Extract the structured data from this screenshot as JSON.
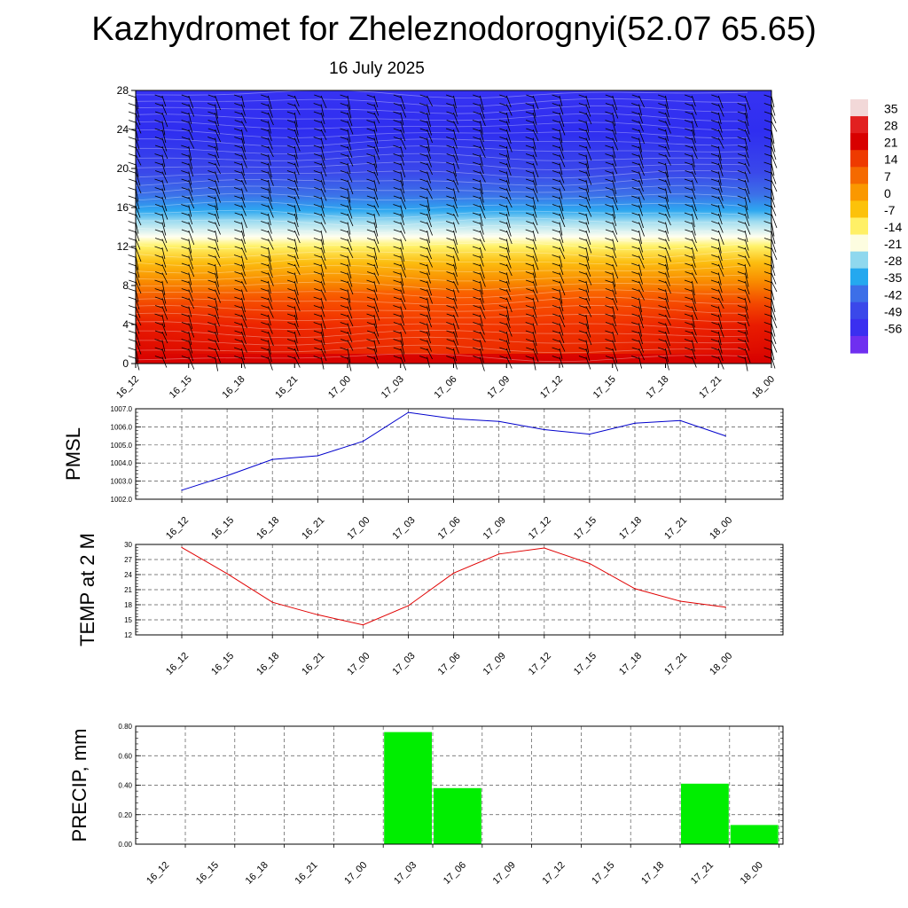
{
  "title": "Kazhydromet for Zheleznodorognyi(52.07 65.65)",
  "subtitle": "16 July 2025",
  "colors": {
    "pmsl_line": "#0000cc",
    "temp_line": "#e00000",
    "precip_bar": "#00ee00",
    "grid": "#555555"
  },
  "colorbar": {
    "labels": [
      "35",
      "28",
      "21",
      "14",
      "7",
      "0",
      "-7",
      "-14",
      "-21",
      "-28",
      "-35",
      "-42",
      "-49",
      "-56"
    ],
    "stops": [
      "#f2d8d8",
      "#e22020",
      "#d80000",
      "#ee3a00",
      "#f56a00",
      "#fa9800",
      "#fcc20a",
      "#fff066",
      "#fdfde0",
      "#8fd8ee",
      "#24a8ef",
      "#3c6fe8",
      "#3a48ea",
      "#3a2ff0",
      "#6f2ff0"
    ]
  },
  "chart_data": [
    {
      "type": "heatmap",
      "title": "",
      "xlabel": "",
      "ylabel": "",
      "x_categories": [
        "16_12",
        "16_15",
        "16_18",
        "16_21",
        "17_00",
        "17_03",
        "17_06",
        "17_09",
        "17_12",
        "17_15",
        "17_18",
        "17_21",
        "18_00"
      ],
      "ylim": [
        0,
        28
      ],
      "yticks": [
        "0",
        "4",
        "8",
        "12",
        "16",
        "20",
        "24",
        "28"
      ],
      "overlay": "wind barbs and contour lines",
      "value_range": [
        -56,
        35
      ]
    },
    {
      "type": "line",
      "ylabel": "PMSL",
      "categories": [
        "16_12",
        "16_15",
        "16_18",
        "16_21",
        "17_00",
        "17_03",
        "17_06",
        "17_09",
        "17_12",
        "17_15",
        "17_18",
        "17_21",
        "18_00"
      ],
      "values": [
        1002.5,
        1003.3,
        1004.2,
        1004.4,
        1005.2,
        1006.8,
        1006.45,
        1006.3,
        1005.85,
        1005.6,
        1006.2,
        1006.35,
        1005.5
      ],
      "ylim": [
        1002.0,
        1007.0
      ],
      "yticks": [
        "1002.0",
        "1003.0",
        "1004.0",
        "1005.0",
        "1006.0",
        "1007.0"
      ],
      "grid": true
    },
    {
      "type": "line",
      "ylabel": "TEMP at 2 M",
      "categories": [
        "16_12",
        "16_15",
        "16_18",
        "16_21",
        "17_00",
        "17_03",
        "17_06",
        "17_09",
        "17_12",
        "17_15",
        "17_18",
        "17_21",
        "18_00"
      ],
      "values": [
        29.4,
        24.2,
        18.5,
        16.0,
        14.0,
        17.8,
        24.3,
        28.1,
        29.3,
        26.2,
        21.2,
        18.7,
        17.5
      ],
      "ylim": [
        12,
        30
      ],
      "yticks": [
        "12",
        "15",
        "18",
        "21",
        "24",
        "27",
        "30"
      ],
      "grid": true
    },
    {
      "type": "bar",
      "ylabel": "PRECIP, mm",
      "categories": [
        "16_12",
        "16_15",
        "16_18",
        "16_21",
        "17_00",
        "17_03",
        "17_06",
        "17_09",
        "17_12",
        "17_15",
        "17_18",
        "17_21",
        "18_00"
      ],
      "values": [
        0,
        0,
        0,
        0,
        0,
        0.76,
        0.38,
        0,
        0,
        0,
        0,
        0.41,
        0.13
      ],
      "ylim": [
        0,
        0.8
      ],
      "yticks": [
        "0.00",
        "0.20",
        "0.40",
        "0.60",
        "0.80"
      ],
      "grid": true
    }
  ]
}
